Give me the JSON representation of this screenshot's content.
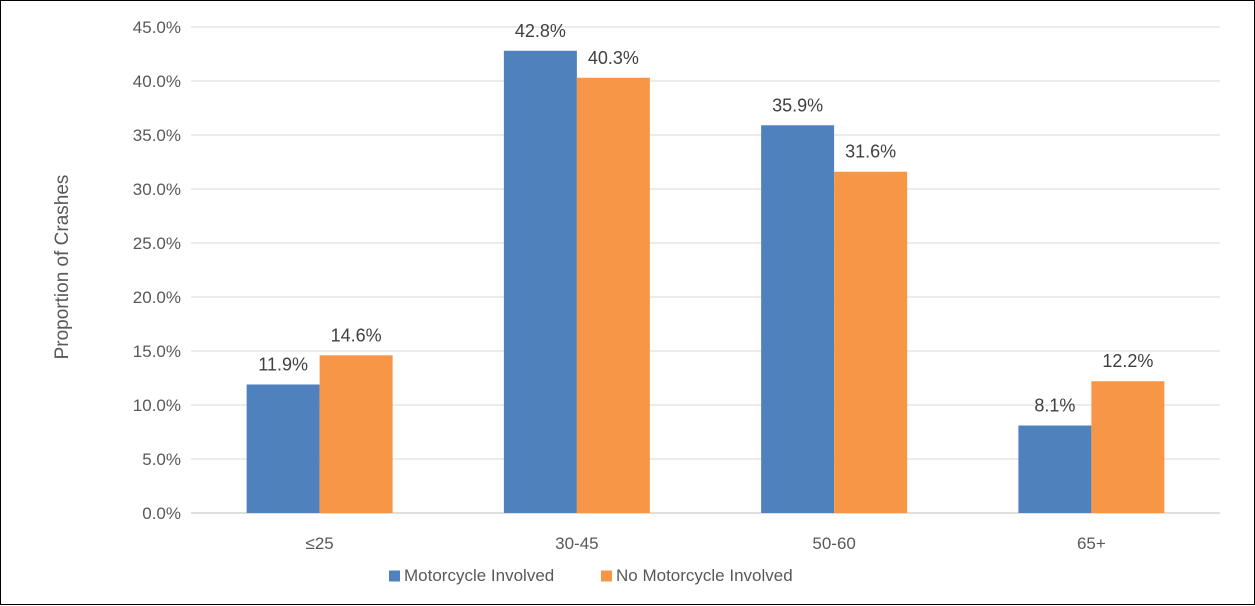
{
  "chart_data": {
    "type": "bar",
    "title": "",
    "xlabel": "",
    "ylabel": "Proportion of Crashes",
    "ylim": [
      0,
      45
    ],
    "yticks": [
      0,
      5,
      10,
      15,
      20,
      25,
      30,
      35,
      40,
      45
    ],
    "ytick_format": "percent_1dp",
    "grid": true,
    "legend_position": "bottom",
    "categories": [
      "≤25",
      "30-45",
      "50-60",
      "65+"
    ],
    "series": [
      {
        "name": "Motorcycle Involved",
        "color": "#4f81bd",
        "values": [
          11.9,
          42.8,
          35.9,
          8.1
        ]
      },
      {
        "name": "No Motorcycle Involved",
        "color": "#f79646",
        "values": [
          14.6,
          40.3,
          31.6,
          12.2
        ]
      }
    ]
  }
}
